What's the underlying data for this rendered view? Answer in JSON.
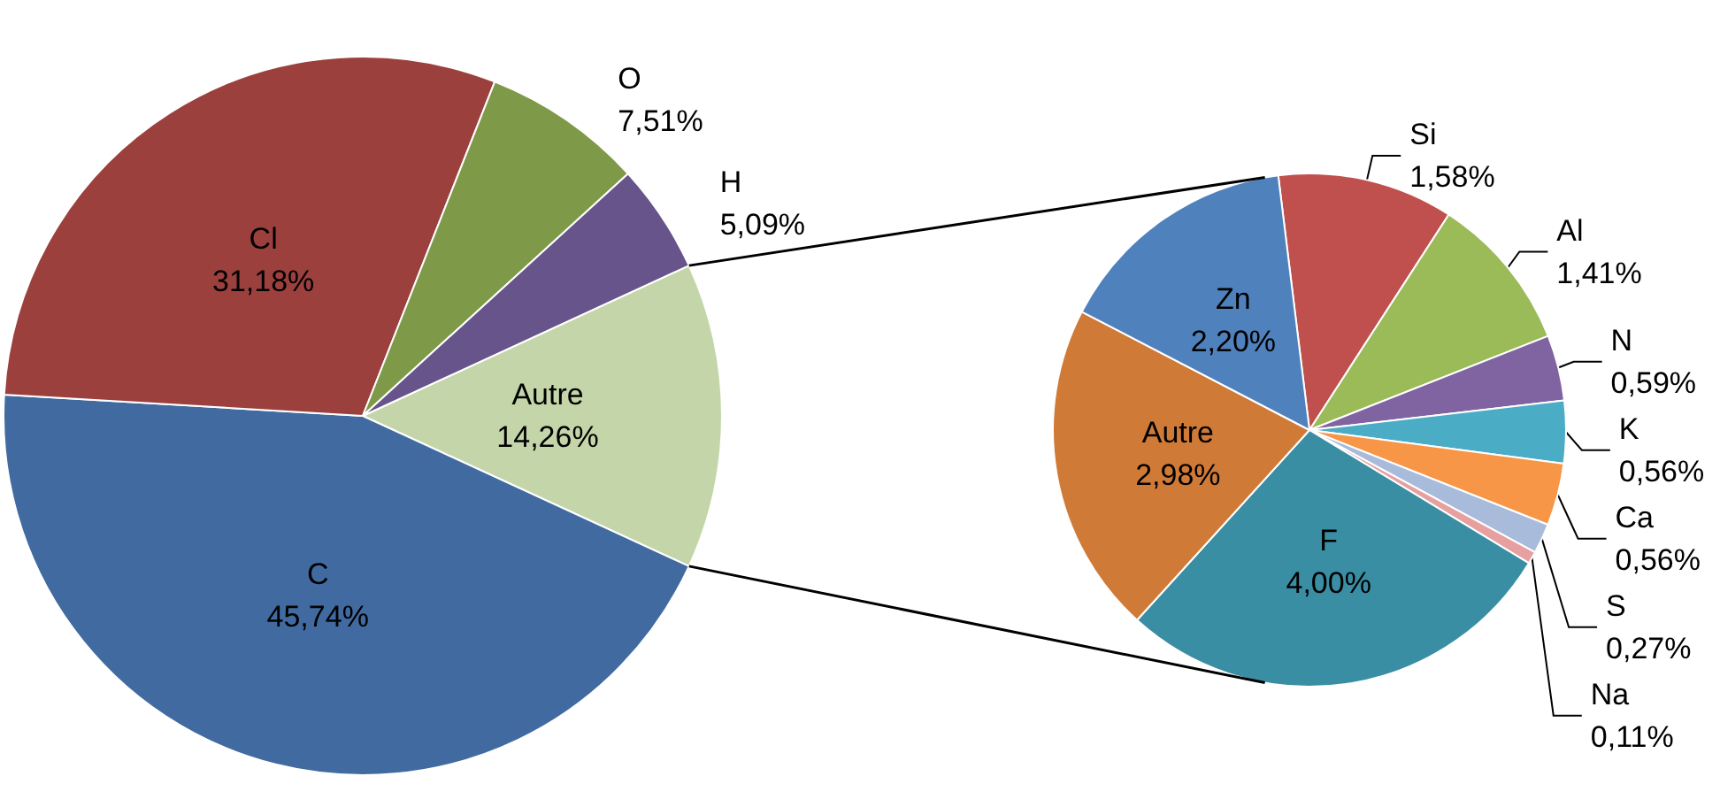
{
  "chart_data": [
    {
      "type": "pie",
      "categories": [
        "Autre",
        "C",
        "Cl",
        "O",
        "H"
      ],
      "values": [
        14.26,
        45.74,
        31.18,
        7.51,
        5.09
      ],
      "colors": [
        "#c4d6a9",
        "#416ba0",
        "#9b403d",
        "#7e9a48",
        "#66548a"
      ],
      "value_labels": [
        "14,26%",
        "45,74%",
        "31,18%",
        "7,51%",
        "5,09%"
      ]
    },
    {
      "type": "pie",
      "categories": [
        "Si",
        "Al",
        "N",
        "K",
        "Ca",
        "S",
        "Na",
        "F",
        "Autre",
        "Zn"
      ],
      "values": [
        1.58,
        1.41,
        0.59,
        0.56,
        0.56,
        0.27,
        0.11,
        4.0,
        2.98,
        2.2
      ],
      "colors": [
        "#c0504d",
        "#9bbb59",
        "#8064a2",
        "#4bacc6",
        "#f79646",
        "#a9bbdb",
        "#e6a0a0",
        "#3a8ea3",
        "#d07a38",
        "#4f81bd"
      ],
      "value_labels": [
        "1,58%",
        "1,41%",
        "0,59%",
        "0,56%",
        "0,56%",
        "0,27%",
        "0,11%",
        "4,00%",
        "2,98%",
        "2,20%"
      ]
    }
  ]
}
